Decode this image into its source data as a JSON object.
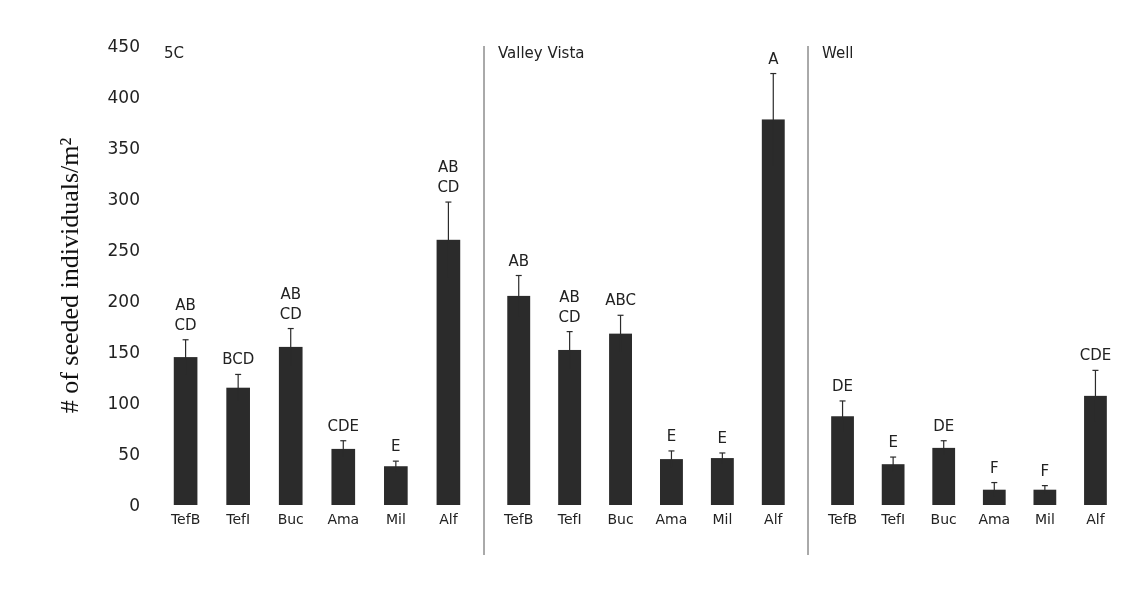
{
  "chart_data": [
    {
      "type": "bar",
      "title": "5C",
      "ylabel": "# of seeded individuals/m²",
      "categories": [
        "TefB",
        "TefI",
        "Buc",
        "Ama",
        "Mil",
        "Alf"
      ],
      "values": [
        145,
        115,
        155,
        55,
        38,
        260
      ],
      "errors": [
        17,
        13,
        18,
        8,
        5,
        37
      ],
      "color": "#2b2b2b",
      "ylim": [
        0,
        450
      ],
      "yticks": [
        0,
        50,
        100,
        150,
        200,
        250,
        300,
        350,
        400,
        450
      ],
      "grid": false,
      "annotations": [
        {
          "text": "AB CD",
          "x": "TefB",
          "y": 162
        },
        {
          "text": "BCD",
          "x": "TefI",
          "y": 128
        },
        {
          "text": "AB CD",
          "x": "Buc",
          "y": 173
        },
        {
          "text": "CDE",
          "x": "Ama",
          "y": 63
        },
        {
          "text": "E",
          "x": "Mil",
          "y": 43
        },
        {
          "text": "AB CD",
          "x": "Alf",
          "y": 297
        }
      ]
    },
    {
      "type": "bar",
      "title": "Valley Vista",
      "categories": [
        "TefB",
        "TefI",
        "Buc",
        "Ama",
        "Mil",
        "Alf"
      ],
      "values": [
        205,
        152,
        168,
        45,
        46,
        378
      ],
      "errors": [
        20,
        18,
        18,
        8,
        5,
        45
      ],
      "color": "#2b2b2b",
      "ylim": [
        0,
        450
      ],
      "yticks": [
        0,
        50,
        100,
        150,
        200,
        250,
        300,
        350,
        400,
        450
      ],
      "tick_labels": "x",
      "grid": false,
      "annotations": [
        {
          "text": "AB",
          "x": "TefB",
          "y": 225
        },
        {
          "text": "AB CD",
          "x": "TefI",
          "y": 170
        },
        {
          "text": "ABC",
          "x": "Buc",
          "y": 186
        },
        {
          "text": "E",
          "x": "Ama",
          "y": 53
        },
        {
          "text": "E",
          "x": "Mil",
          "y": 51
        },
        {
          "text": "A",
          "x": "Alf",
          "y": 423
        }
      ]
    },
    {
      "type": "bar",
      "title": "Well",
      "categories": [
        "TefB",
        "TefI",
        "Buc",
        "Ama",
        "Mil",
        "Alf"
      ],
      "values": [
        87,
        40,
        56,
        15,
        15,
        107
      ],
      "errors": [
        15,
        7,
        7,
        7,
        4,
        25
      ],
      "color": "#2b2b2b",
      "ylim": [
        0,
        450
      ],
      "yticks": [
        0,
        50,
        100,
        150,
        200,
        250,
        300,
        350,
        400,
        450
      ],
      "tick_labels": "x",
      "grid": false,
      "annotations": [
        {
          "text": "DE",
          "x": "TefB",
          "y": 102
        },
        {
          "text": "E",
          "x": "TefI",
          "y": 47
        },
        {
          "text": "DE",
          "x": "Buc",
          "y": 63
        },
        {
          "text": "F",
          "x": "Ama",
          "y": 22
        },
        {
          "text": "F",
          "x": "Mil",
          "y": 19
        },
        {
          "text": "CDE",
          "x": "Alf",
          "y": 132
        }
      ]
    }
  ]
}
